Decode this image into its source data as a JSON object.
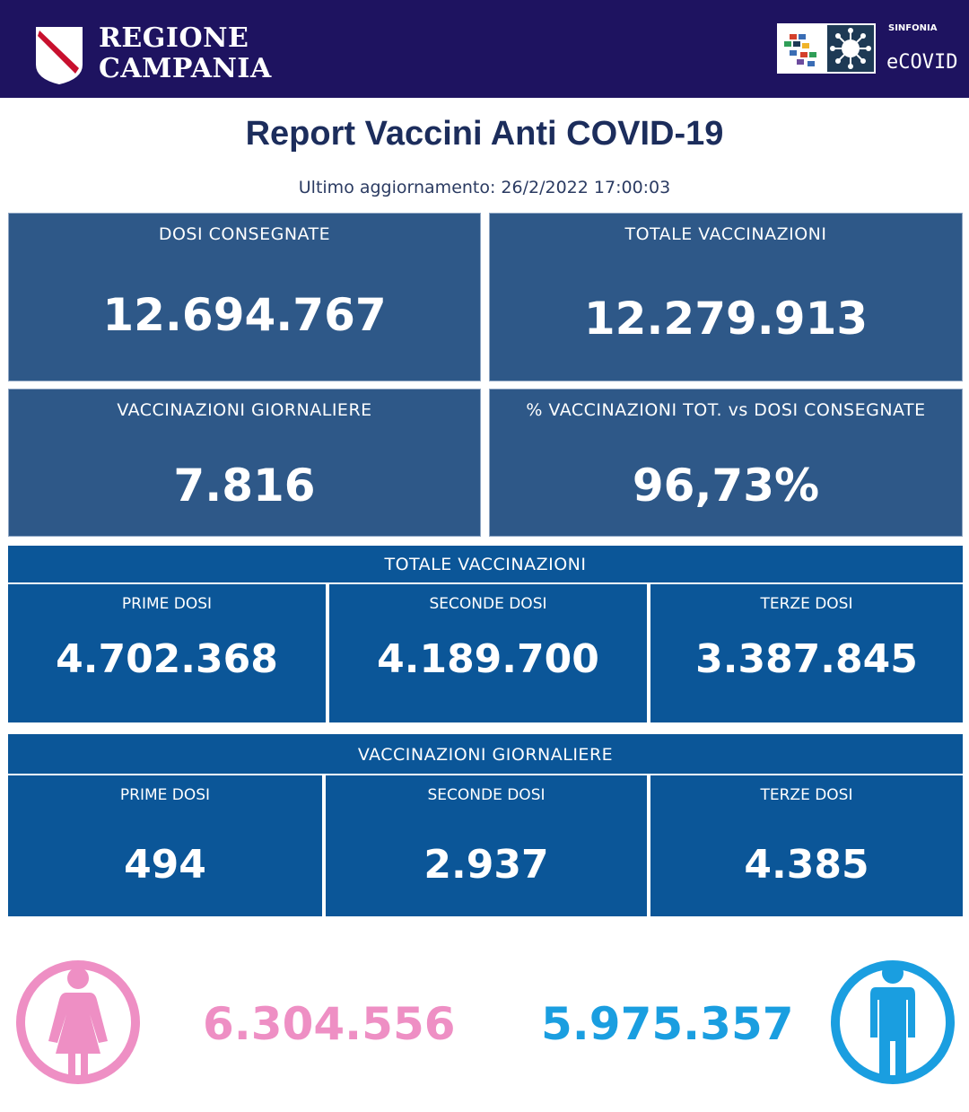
{
  "header": {
    "brand_line1": "REGIONE",
    "brand_line2": "CAMPANIA",
    "sinfonia": "SINFONIA",
    "ecovid": "eCOVID",
    "bg_color": "#1e1360"
  },
  "title": "Report Vaccini Anti COVID-19",
  "updated": "Ultimo aggiornamento: 26/2/2022  17:00:03",
  "cards": {
    "dosi_consegnate": {
      "label": "DOSI  CONSEGNATE",
      "value": "12.694.767"
    },
    "totale_vaccinazioni": {
      "label": "TOTALE VACCINAZIONI",
      "value": "12.279.913"
    },
    "vaccinazioni_giornaliere": {
      "label": "VACCINAZIONI GIORNALIERE",
      "value": "7.816"
    },
    "percentuale": {
      "label": "% VACCINAZIONI TOT. vs DOSI CONSEGNATE",
      "value": "96,73%"
    }
  },
  "totale_section": {
    "title": "TOTALE VACCINAZIONI",
    "prime": {
      "label": "PRIME DOSI",
      "value": "4.702.368"
    },
    "seconde": {
      "label": "SECONDE DOSI",
      "value": "4.189.700"
    },
    "terze": {
      "label": "TERZE DOSI",
      "value": "3.387.845"
    }
  },
  "giornaliere_section": {
    "title": "VACCINAZIONI GIORNALIERE",
    "prime": {
      "label": "PRIME DOSI",
      "value": "494"
    },
    "seconde": {
      "label": "SECONDE DOSI",
      "value": "2.937"
    },
    "terze": {
      "label": "TERZE DOSI",
      "value": "4.385"
    }
  },
  "gender": {
    "female": {
      "value": "6.304.556",
      "color": "#ee8fc4",
      "icon": "female-icon"
    },
    "male": {
      "value": "5.975.357",
      "color": "#1a9ee0",
      "icon": "male-icon"
    }
  }
}
